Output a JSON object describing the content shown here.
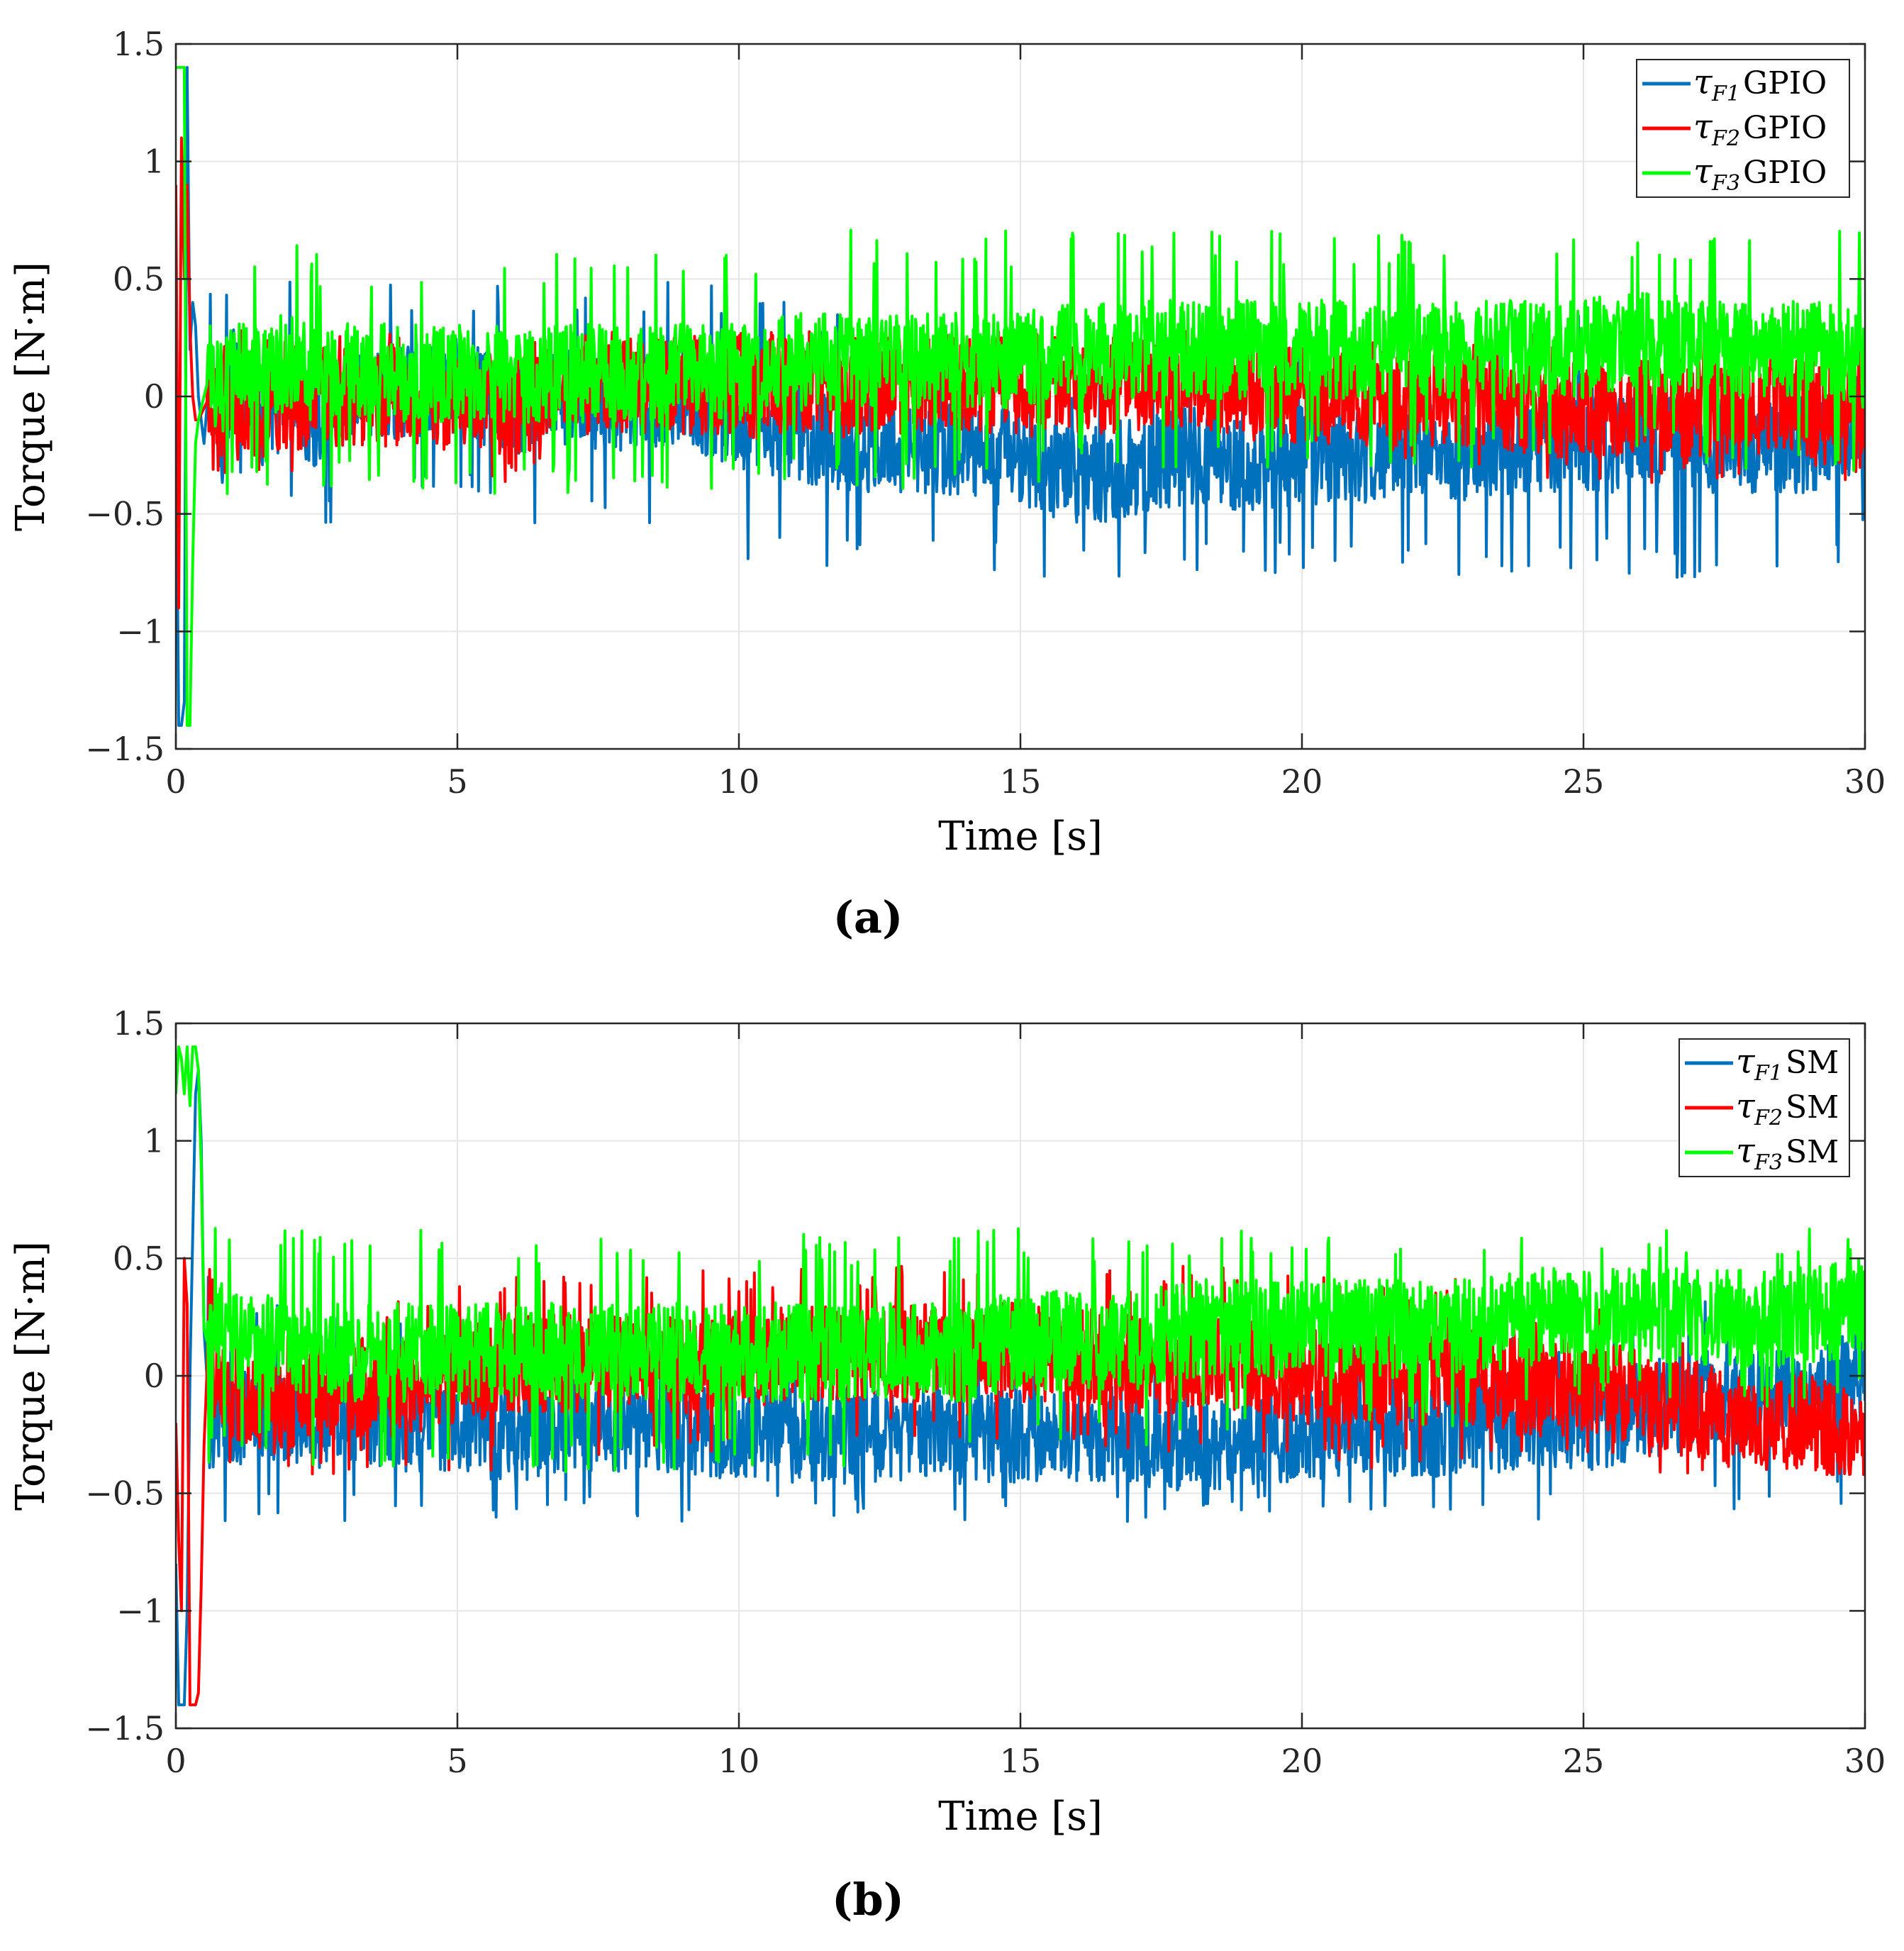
{
  "chart_data": [
    {
      "type": "line",
      "panel": "a",
      "caption": "(a)",
      "xlabel": "Time [s]",
      "ylabel": "Torque [N·m]",
      "xlim": [
        0,
        30
      ],
      "ylim": [
        -1.5,
        1.5
      ],
      "xticks": [
        0,
        5,
        10,
        15,
        20,
        25,
        30
      ],
      "xtick_labels": [
        "0",
        "5",
        "10",
        "15",
        "20",
        "25",
        "30"
      ],
      "yticks": [
        -1.5,
        -1,
        -0.5,
        0,
        0.5,
        1,
        1.5
      ],
      "ytick_labels": [
        "−1.5",
        "−1",
        "−0.5",
        "0",
        "0.5",
        "1",
        "1.5"
      ],
      "grid": true,
      "legend_position": "top-right",
      "series": [
        {
          "name": "τF1 GPIO",
          "symbol": "τ",
          "subscript": "F1",
          "label": "GPIO",
          "color": "#0072BD",
          "x": [
            0,
            0.05,
            0.1,
            0.15,
            0.2,
            0.25,
            0.3,
            0.35,
            0.4,
            0.5,
            0.6,
            0.8,
            1,
            1.5,
            2,
            2.5,
            3,
            4,
            5,
            6,
            7,
            8,
            9,
            10,
            11,
            12,
            13,
            14,
            15,
            16,
            17,
            18,
            19,
            20,
            21,
            22,
            23,
            24,
            25,
            26,
            27,
            28,
            29,
            30
          ],
          "y": [
            0.0,
            -1.4,
            -1.4,
            -1.3,
            1.4,
            0.2,
            0.4,
            0.3,
            0.0,
            -0.2,
            0.1,
            -0.2,
            0.1,
            -0.1,
            0.0,
            -0.1,
            0.05,
            0.0,
            0.05,
            -0.05,
            0.0,
            -0.05,
            0.0,
            -0.1,
            -0.15,
            -0.2,
            -0.2,
            -0.25,
            -0.25,
            -0.35,
            -0.3,
            -0.25,
            -0.3,
            -0.25,
            -0.25,
            -0.2,
            -0.25,
            -0.2,
            -0.2,
            -0.2,
            -0.2,
            -0.2,
            -0.2,
            -0.1
          ],
          "noise_min": -0.77,
          "noise_max": 0.49
        },
        {
          "name": "τF2 GPIO",
          "symbol": "τ",
          "subscript": "F2",
          "label": "GPIO",
          "color": "#FF0000",
          "x": [
            0,
            0.05,
            0.1,
            0.15,
            0.2,
            0.25,
            0.3,
            0.35,
            0.4,
            0.5,
            0.6,
            0.8,
            1,
            1.5,
            2,
            2.5,
            3,
            4,
            5,
            6,
            7,
            8,
            9,
            10,
            11,
            12,
            13,
            14,
            15,
            16,
            17,
            18,
            19,
            20,
            21,
            22,
            23,
            24,
            25,
            26,
            27,
            28,
            29,
            30
          ],
          "y": [
            0.9,
            -0.9,
            1.1,
            0.5,
            0.9,
            0.3,
            0.0,
            -0.1,
            -0.1,
            -0.05,
            0.0,
            -0.05,
            0.0,
            -0.05,
            -0.05,
            0.0,
            0.0,
            0.0,
            0.0,
            -0.05,
            0.05,
            0.05,
            0.05,
            0.05,
            0.05,
            0.05,
            0.05,
            0.05,
            0.05,
            0.05,
            0.05,
            0.05,
            0.05,
            0.0,
            0.0,
            0.0,
            0.0,
            -0.05,
            -0.05,
            -0.05,
            -0.05,
            -0.05,
            -0.05,
            -0.1
          ],
          "noise_min": -0.38,
          "noise_max": 0.28
        },
        {
          "name": "τF3 GPIO",
          "symbol": "τ",
          "subscript": "F3",
          "label": "GPIO",
          "color": "#00FF00",
          "x": [
            0,
            0.05,
            0.1,
            0.15,
            0.2,
            0.25,
            0.3,
            0.35,
            0.4,
            0.5,
            0.6,
            0.8,
            1,
            1.5,
            2,
            2.5,
            3,
            4,
            5,
            6,
            7,
            8,
            9,
            10,
            11,
            12,
            13,
            14,
            15,
            16,
            17,
            18,
            19,
            20,
            21,
            22,
            23,
            24,
            25,
            26,
            27,
            28,
            29,
            30
          ],
          "y": [
            1.4,
            1.4,
            1.4,
            1.4,
            -1.4,
            -1.4,
            -0.7,
            -0.2,
            -0.1,
            0.0,
            0.1,
            0.05,
            0.1,
            0.1,
            0.15,
            0.1,
            0.1,
            0.1,
            0.1,
            0.1,
            0.1,
            0.1,
            0.1,
            0.1,
            0.15,
            0.15,
            0.15,
            0.15,
            0.15,
            0.2,
            0.2,
            0.2,
            0.2,
            0.2,
            0.2,
            0.2,
            0.2,
            0.2,
            0.2,
            0.25,
            0.2,
            0.2,
            0.2,
            0.15
          ],
          "noise_min": -0.42,
          "noise_max": 0.71
        }
      ]
    },
    {
      "type": "line",
      "panel": "b",
      "caption": "(b)",
      "xlabel": "Time [s]",
      "ylabel": "Torque [N·m]",
      "xlim": [
        0,
        30
      ],
      "ylim": [
        -1.5,
        1.5
      ],
      "xticks": [
        0,
        5,
        10,
        15,
        20,
        25,
        30
      ],
      "xtick_labels": [
        "0",
        "5",
        "10",
        "15",
        "20",
        "25",
        "30"
      ],
      "yticks": [
        -1.5,
        -1,
        -0.5,
        0,
        0.5,
        1,
        1.5
      ],
      "ytick_labels": [
        "−1.5",
        "−1",
        "−0.5",
        "0",
        "0.5",
        "1",
        "1.5"
      ],
      "grid": true,
      "legend_position": "top-right",
      "series": [
        {
          "name": "τF1 SM",
          "symbol": "τ",
          "subscript": "F1",
          "label": "SM",
          "color": "#0072BD",
          "x": [
            0,
            0.05,
            0.1,
            0.15,
            0.2,
            0.25,
            0.3,
            0.35,
            0.4,
            0.45,
            0.5,
            0.6,
            0.8,
            1,
            1.5,
            2,
            2.5,
            3,
            4,
            5,
            6,
            7,
            8,
            9,
            10,
            11,
            12,
            13,
            14,
            15,
            16,
            17,
            18,
            19,
            20,
            21,
            22,
            23,
            24,
            25,
            26,
            27,
            28,
            29,
            30
          ],
          "y": [
            -0.8,
            -1.4,
            -1.4,
            -1.4,
            -1.0,
            0.0,
            0.6,
            1.2,
            1.3,
            1.0,
            0.2,
            -0.2,
            -0.15,
            -0.2,
            -0.15,
            -0.15,
            -0.2,
            -0.15,
            -0.2,
            -0.2,
            -0.25,
            -0.2,
            -0.2,
            -0.2,
            -0.25,
            -0.25,
            -0.25,
            -0.25,
            -0.25,
            -0.25,
            -0.25,
            -0.25,
            -0.3,
            -0.25,
            -0.25,
            -0.2,
            -0.25,
            -0.2,
            -0.2,
            -0.2,
            -0.15,
            -0.1,
            -0.1,
            -0.1,
            0.0
          ],
          "noise_min": -0.62,
          "noise_max": 0.47
        },
        {
          "name": "τF2 SM",
          "symbol": "τ",
          "subscript": "F2",
          "label": "SM",
          "color": "#FF0000",
          "x": [
            0,
            0.05,
            0.1,
            0.15,
            0.2,
            0.25,
            0.3,
            0.35,
            0.4,
            0.45,
            0.5,
            0.6,
            0.8,
            1,
            1.5,
            2,
            2.5,
            3,
            4,
            5,
            6,
            7,
            8,
            9,
            10,
            11,
            12,
            13,
            14,
            15,
            16,
            17,
            18,
            19,
            20,
            21,
            22,
            23,
            24,
            25,
            26,
            27,
            28,
            29,
            30
          ],
          "y": [
            -0.2,
            -0.7,
            -1.0,
            0.5,
            0.3,
            -1.4,
            -1.4,
            -1.4,
            -1.35,
            -0.9,
            -0.3,
            0.3,
            -0.1,
            -0.1,
            -0.1,
            -0.1,
            -0.05,
            -0.05,
            -0.05,
            0.0,
            0.05,
            0.05,
            0.05,
            0.05,
            0.05,
            0.1,
            0.1,
            0.1,
            0.1,
            0.1,
            0.1,
            0.05,
            0.05,
            0.05,
            0.0,
            0.0,
            0.0,
            0.0,
            -0.05,
            -0.05,
            -0.1,
            -0.15,
            -0.2,
            -0.2,
            -0.3
          ],
          "noise_min": -0.42,
          "noise_max": 0.47
        },
        {
          "name": "τF3 SM",
          "symbol": "τ",
          "subscript": "F3",
          "label": "SM",
          "color": "#00FF00",
          "x": [
            0,
            0.05,
            0.1,
            0.15,
            0.2,
            0.25,
            0.3,
            0.35,
            0.4,
            0.45,
            0.5,
            0.6,
            0.8,
            1,
            1.5,
            2,
            2.5,
            3,
            4,
            5,
            6,
            7,
            8,
            9,
            10,
            11,
            12,
            13,
            14,
            15,
            16,
            17,
            18,
            19,
            20,
            21,
            22,
            23,
            24,
            25,
            26,
            27,
            28,
            29,
            30
          ],
          "y": [
            1.2,
            1.4,
            1.35,
            1.2,
            1.4,
            1.15,
            1.4,
            1.4,
            1.3,
            0.9,
            0.2,
            0.1,
            0.2,
            0.15,
            0.15,
            0.1,
            0.1,
            0.1,
            0.1,
            0.1,
            0.1,
            0.1,
            0.1,
            0.1,
            0.1,
            0.1,
            0.1,
            0.1,
            0.1,
            0.15,
            0.15,
            0.15,
            0.2,
            0.2,
            0.2,
            0.2,
            0.2,
            0.2,
            0.25,
            0.25,
            0.25,
            0.25,
            0.25,
            0.25,
            0.3
          ],
          "noise_min": -0.42,
          "noise_max": 0.63
        }
      ]
    }
  ]
}
